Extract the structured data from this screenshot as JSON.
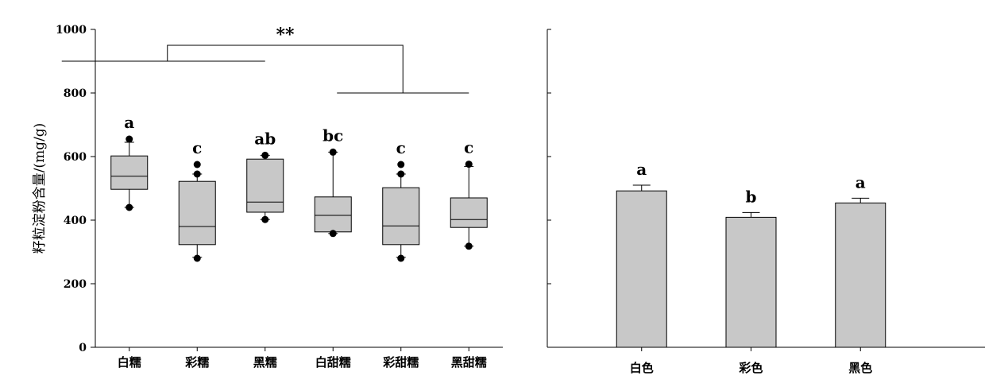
{
  "chart_data": [
    {
      "type": "box",
      "ylabel": "籽粒淀粉含量/(mg/g)",
      "ylim": [
        0,
        1000
      ],
      "yticks": [
        0,
        200,
        400,
        600,
        800,
        1000
      ],
      "tick_labels": [
        "0",
        "200",
        "400",
        "600",
        "800",
        "1000"
      ],
      "categories": [
        "白糯",
        "彩糯",
        "黑糯",
        "白甜糯",
        "彩甜糯",
        "黑甜糯"
      ],
      "boxes": [
        {
          "category": "白糯",
          "whisker_low": 440,
          "q1": 497,
          "median": 538,
          "q3": 602,
          "whisker_high": 645,
          "outliers": [
            440,
            655
          ],
          "letter": "a"
        },
        {
          "category": "彩糯",
          "whisker_low": 283,
          "q1": 323,
          "median": 380,
          "q3": 522,
          "whisker_high": 545,
          "outliers": [
            280,
            545,
            575
          ],
          "letter": "c"
        },
        {
          "category": "黑糯",
          "whisker_low": 402,
          "q1": 425,
          "median": 457,
          "q3": 592,
          "whisker_high": 604,
          "outliers": [
            402,
            604
          ],
          "letter": "ab"
        },
        {
          "category": "白甜糯",
          "whisker_low": 358,
          "q1": 363,
          "median": 415,
          "q3": 473,
          "whisker_high": 614,
          "outliers": [
            358,
            614
          ],
          "letter": "bc"
        },
        {
          "category": "彩甜糯",
          "whisker_low": 283,
          "q1": 323,
          "median": 382,
          "q3": 502,
          "whisker_high": 545,
          "outliers": [
            280,
            545,
            575
          ],
          "letter": "c"
        },
        {
          "category": "黑甜糯",
          "whisker_low": 318,
          "q1": 377,
          "median": 402,
          "q3": 470,
          "whisker_high": 569,
          "outliers": [
            318,
            576
          ],
          "letter": "c"
        }
      ],
      "significance": {
        "label": "**",
        "group_a": [
          "白糯",
          "彩糯",
          "黑糯"
        ],
        "group_b": [
          "白甜糯",
          "彩甜糯",
          "黑甜糯"
        ]
      }
    },
    {
      "type": "bar",
      "categories": [
        "白色",
        "彩色",
        "黑色"
      ],
      "values": [
        492,
        409,
        454
      ],
      "errors": [
        18,
        15,
        15
      ],
      "letters": [
        "a",
        "b",
        "a"
      ],
      "ylim": [
        0,
        1000
      ],
      "yticks": [
        0,
        200,
        400,
        600,
        800,
        1000
      ]
    }
  ],
  "colors": {
    "fill": "#c8c8c8",
    "stroke": "#000000",
    "background": "#ffffff"
  }
}
